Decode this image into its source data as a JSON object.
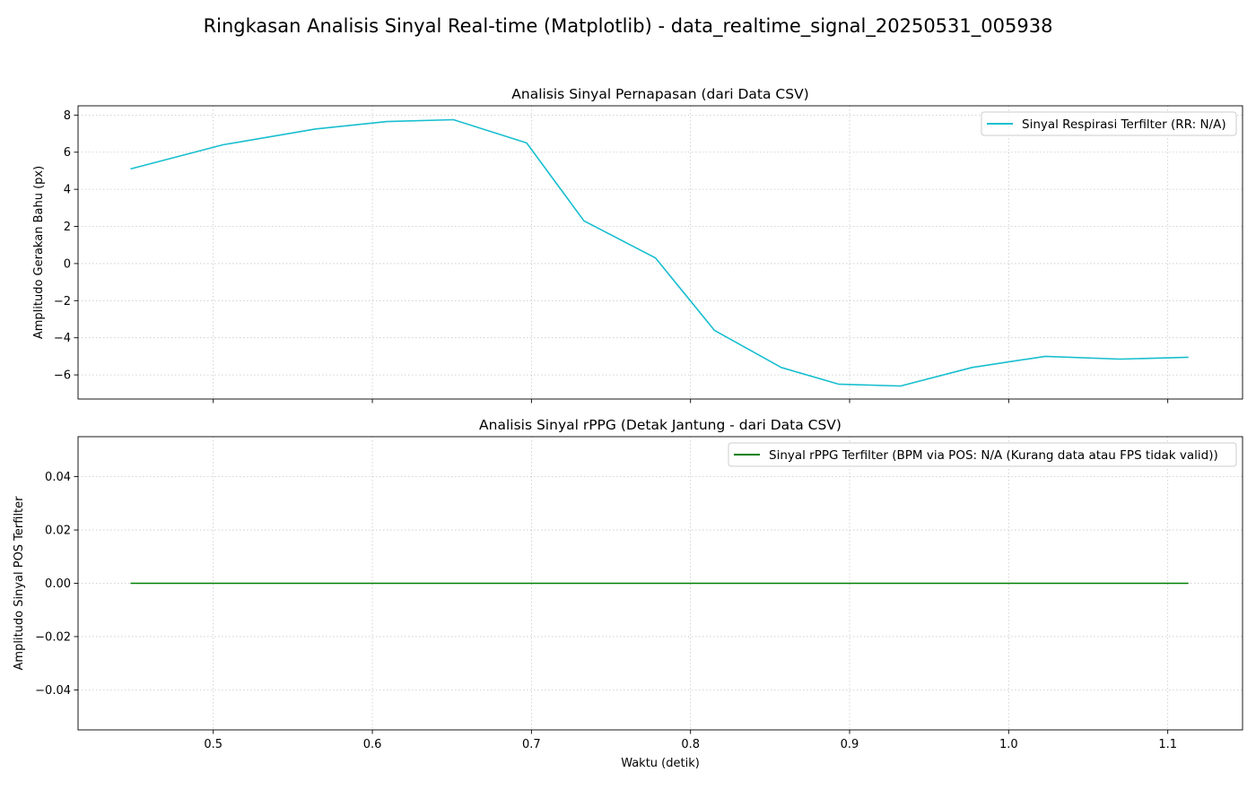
{
  "figure": {
    "suptitle": "Ringkasan Analisis Sinyal Real-time (Matplotlib) - data_realtime_signal_20250531_005938"
  },
  "chart_data": [
    {
      "type": "line",
      "title": "Analisis Sinyal Pernapasan (dari Data CSV)",
      "xlabel": "",
      "ylabel": "Amplitudo Gerakan Bahu (px)",
      "xlim": [
        0.415,
        1.147
      ],
      "ylim": [
        -7.3,
        8.5
      ],
      "xticks": [
        0.5,
        0.6,
        0.7,
        0.8,
        0.9,
        1.0,
        1.1
      ],
      "xtick_labels_visible": false,
      "yticks": [
        -6,
        -4,
        -2,
        0,
        2,
        4,
        6,
        8
      ],
      "ytick_labels": [
        "−6",
        "−4",
        "−2",
        "0",
        "2",
        "4",
        "6",
        "8"
      ],
      "grid": true,
      "legend_position": "top-right",
      "series": [
        {
          "name": "Sinyal Respirasi Terfilter (RR: N/A)",
          "color": "#17becf",
          "x": [
            0.448,
            0.506,
            0.564,
            0.609,
            0.651,
            0.697,
            0.733,
            0.778,
            0.815,
            0.857,
            0.893,
            0.932,
            0.977,
            1.023,
            1.07,
            1.113
          ],
          "y": [
            5.1,
            6.4,
            7.25,
            7.65,
            7.75,
            6.5,
            2.3,
            0.3,
            -3.6,
            -5.6,
            -6.5,
            -6.6,
            -5.6,
            -5.0,
            -5.15,
            -5.05
          ]
        }
      ]
    },
    {
      "type": "line",
      "title": "Analisis Sinyal rPPG (Detak Jantung - dari Data CSV)",
      "xlabel": "Waktu (detik)",
      "ylabel": "Amplitudo Sinyal POS Terfilter",
      "xlim": [
        0.415,
        1.147
      ],
      "ylim": [
        -0.055,
        0.055
      ],
      "xticks": [
        0.5,
        0.6,
        0.7,
        0.8,
        0.9,
        1.0,
        1.1
      ],
      "xtick_labels": [
        "0.5",
        "0.6",
        "0.7",
        "0.8",
        "0.9",
        "1.0",
        "1.1"
      ],
      "yticks": [
        -0.04,
        -0.02,
        0.0,
        0.02,
        0.04
      ],
      "ytick_labels": [
        "−0.04",
        "−0.02",
        "0.00",
        "0.02",
        "0.04"
      ],
      "grid": true,
      "legend_position": "top-right",
      "series": [
        {
          "name": "Sinyal rPPG Terfilter (BPM via POS: N/A (Kurang data atau FPS tidak valid))",
          "color": "#008000",
          "x": [
            0.448,
            1.113
          ],
          "y": [
            0.0,
            0.0
          ]
        }
      ]
    }
  ]
}
